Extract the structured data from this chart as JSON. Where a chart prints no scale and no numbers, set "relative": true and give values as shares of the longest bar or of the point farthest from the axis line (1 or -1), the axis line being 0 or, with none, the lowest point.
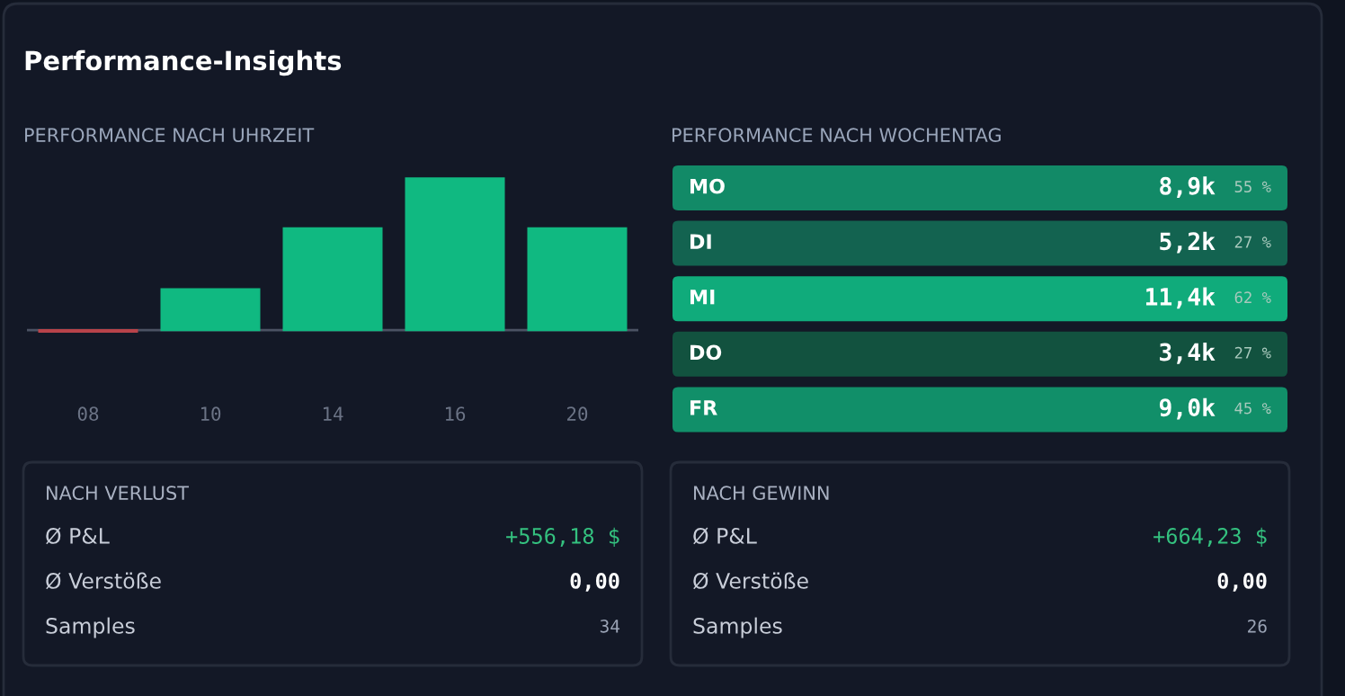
{
  "chart_data": [
    {
      "type": "other",
      "title": "Performance-Insights"
    },
    {
      "type": "bar",
      "subtitle": "PERFORMANCE NACH UHRZEIT",
      "relative": true,
      "categories": [
        "08",
        "10",
        "14",
        "16",
        "20"
      ],
      "values": [
        -0.01,
        0.27,
        0.67,
        1,
        0.67
      ],
      "colors": [
        "#b8434a",
        "#10b981",
        "#10b981",
        "#10b981",
        "#10b981"
      ],
      "grid": false,
      "legend": false
    },
    {
      "type": "other",
      "subtitle": "PERFORMANCE NACH WOCHENTAG",
      "categories": [
        "MO",
        "DI",
        "MI",
        "DO",
        "FR"
      ],
      "value_labels": [
        "8,9k",
        "5,2k",
        "11,4k",
        "3,4k",
        "9,0k"
      ],
      "annotations": [
        "55 %",
        "27 %",
        "62 %",
        "27 %",
        "45 %"
      ],
      "colors": [
        "#128a67",
        "#136350",
        "#10ab7b",
        "#12523f",
        "#118f69"
      ]
    },
    {
      "type": "other",
      "subtitle": "NACH VERLUST",
      "categories": [
        "Ø P&L",
        "Ø Verstöße",
        "Samples"
      ],
      "value_labels": [
        "+556,18 $",
        "0,00",
        "34"
      ],
      "colors": [
        "#34c17f",
        "#ffffff",
        "#9aa3b5"
      ]
    },
    {
      "type": "other",
      "subtitle": "NACH GEWINN",
      "categories": [
        "Ø P&L",
        "Ø Verstöße",
        "Samples"
      ],
      "value_labels": [
        "+664,23 $",
        "0,00",
        "26"
      ],
      "colors": [
        "#34c17f",
        "#ffffff",
        "#9aa3b5"
      ]
    }
  ]
}
